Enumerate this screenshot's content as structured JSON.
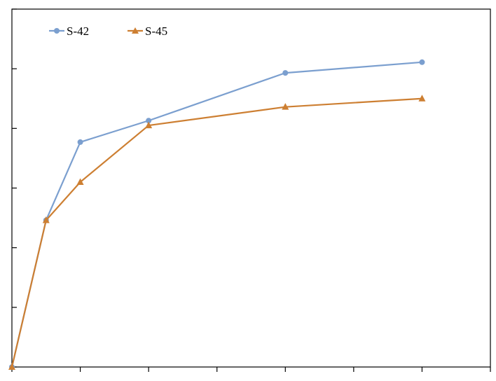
{
  "chart_data": {
    "type": "line",
    "title": "",
    "xlabel": "",
    "ylabel": "",
    "x": [
      0,
      0.5,
      1,
      2,
      4,
      6
    ],
    "xlim": [
      0,
      7
    ],
    "ylim": [
      0,
      6
    ],
    "xticks": [
      0,
      1,
      2,
      3,
      4,
      5,
      6,
      7
    ],
    "yticks": [
      0,
      1,
      2,
      3,
      4,
      5,
      6
    ],
    "grid": false,
    "legend_position": "top-left",
    "series": [
      {
        "name": "S-42",
        "color": "#7B9FCF",
        "marker": "circle",
        "values": [
          0,
          2.46,
          3.77,
          4.13,
          4.93,
          5.11
        ]
      },
      {
        "name": "S-45",
        "color": "#CD7F32",
        "marker": "triangle",
        "values": [
          0,
          2.46,
          3.1,
          4.05,
          4.36,
          4.5
        ]
      }
    ]
  }
}
